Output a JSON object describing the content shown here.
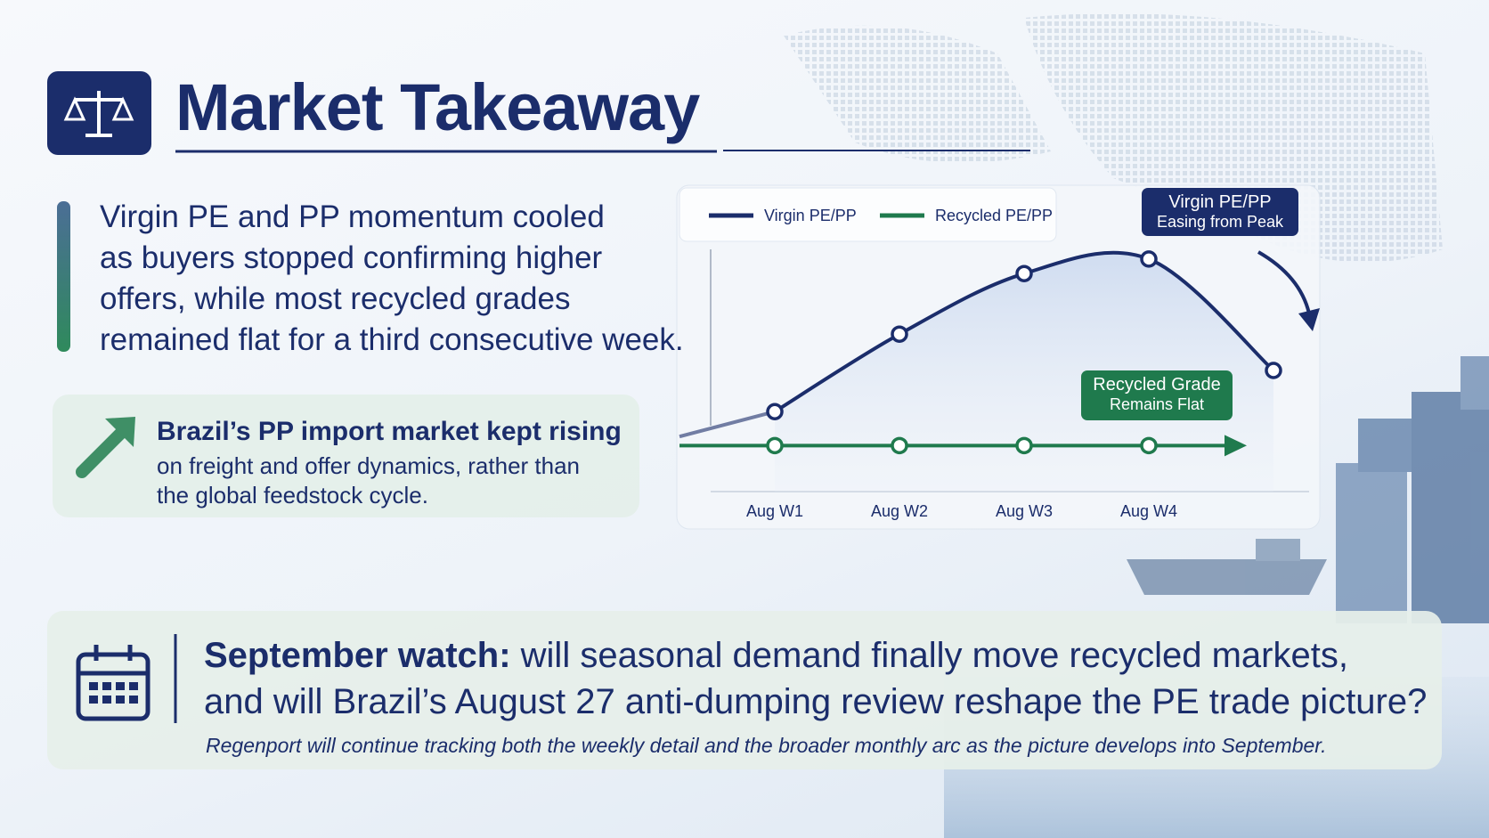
{
  "header": {
    "title": "Market Takeaway"
  },
  "summary": {
    "lines": [
      "Virgin PE and PP momentum cooled",
      "as buyers stopped confirming higher",
      "offers, while most recycled grades",
      "remained flat for a third consecutive week."
    ]
  },
  "callout": {
    "headline": "Brazil’s PP import market kept rising",
    "lines": [
      "on freight and offer dynamics, rather than",
      "the global feedstock cycle."
    ]
  },
  "chart_data": {
    "type": "line",
    "categories": [
      "Aug W1",
      "Aug W2",
      "Aug W3",
      "Aug W4",
      null
    ],
    "series": [
      {
        "name": "Virgin PE/PP",
        "color": "#1b2d6b",
        "values": [
          33,
          65,
          90,
          96,
          50
        ]
      },
      {
        "name": "Recycled PE/PP",
        "color": "#1f7a4d",
        "values": [
          19,
          19,
          19,
          19,
          null
        ]
      }
    ],
    "ylim": [
      0,
      100
    ],
    "grid": false,
    "legend": "top-left",
    "annotations": [
      {
        "lines": [
          "Virgin PE/PP",
          "Easing from Peak"
        ],
        "color": "#1b2d6b"
      },
      {
        "lines": [
          "Recycled Grade",
          "Remains Flat"
        ],
        "color": "#1f7a4d"
      }
    ]
  },
  "footer": {
    "lead": "September watch:",
    "question_lines": [
      "will seasonal demand finally move recycled markets,",
      "and will Brazil’s August 27 anti-dumping review reshape the PE trade picture?"
    ],
    "note": "Regenport will continue tracking both the weekly detail and the broader monthly arc as the picture develops into September."
  }
}
